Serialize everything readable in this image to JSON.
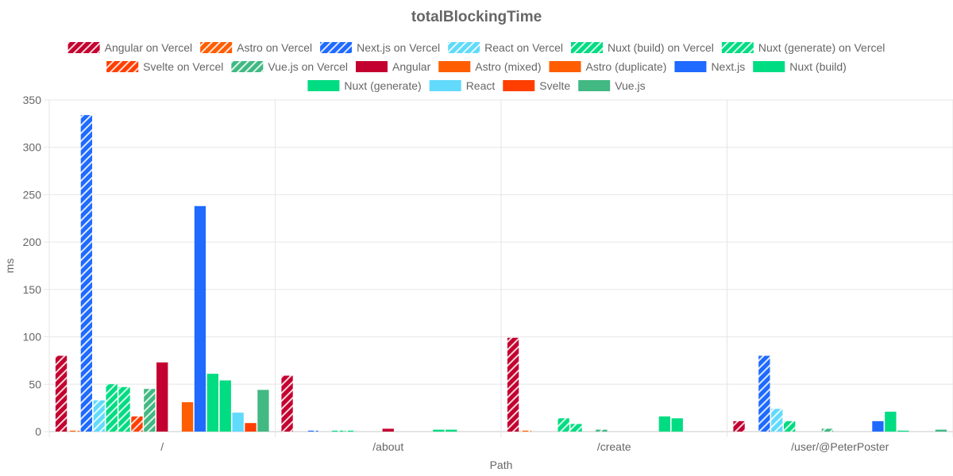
{
  "chart_data": {
    "type": "bar",
    "title": "totalBlockingTime",
    "xlabel": "Path",
    "ylabel": "ms",
    "ylim": [
      0,
      350
    ],
    "yticks": [
      0,
      50,
      100,
      150,
      200,
      250,
      300,
      350
    ],
    "grid": true,
    "legend_position": "top",
    "categories": [
      "/",
      "/about",
      "/create",
      "/user/@PeterPoster"
    ],
    "series": [
      {
        "name": "Angular on Vercel",
        "color": "#c3002f",
        "pattern": "hatched",
        "values": [
          80,
          59,
          99,
          11
        ]
      },
      {
        "name": "Astro on Vercel",
        "color": "#ff5d01",
        "pattern": "hatched",
        "values": [
          1,
          0,
          1,
          0
        ]
      },
      {
        "name": "Next.js on Vercel",
        "color": "#1f6aff",
        "pattern": "hatched",
        "values": [
          334,
          1,
          0,
          80
        ]
      },
      {
        "name": "React on Vercel",
        "color": "#61dafb",
        "pattern": "hatched",
        "values": [
          33,
          0,
          0,
          24
        ]
      },
      {
        "name": "Nuxt (build) on Vercel",
        "color": "#00dc82",
        "pattern": "hatched",
        "values": [
          50,
          1,
          14,
          11
        ]
      },
      {
        "name": "Nuxt (generate) on Vercel",
        "color": "#00dc82",
        "pattern": "hatched",
        "values": [
          47,
          1,
          8,
          0
        ]
      },
      {
        "name": "Svelte on Vercel",
        "color": "#ff3e00",
        "pattern": "hatched",
        "values": [
          16,
          0,
          0,
          0
        ]
      },
      {
        "name": "Vue.js on Vercel",
        "color": "#42b883",
        "pattern": "hatched",
        "values": [
          45,
          0,
          2,
          3
        ]
      },
      {
        "name": "Angular",
        "color": "#c3002f",
        "pattern": "solid",
        "values": [
          73,
          3,
          0,
          0
        ]
      },
      {
        "name": "Astro (mixed)",
        "color": "#ff5d01",
        "pattern": "solid",
        "values": [
          0,
          0,
          0,
          0
        ]
      },
      {
        "name": "Astro (duplicate)",
        "color": "#ff5d01",
        "pattern": "solid",
        "values": [
          31,
          0,
          0,
          0
        ]
      },
      {
        "name": "Next.js",
        "color": "#1f6aff",
        "pattern": "solid",
        "values": [
          238,
          0,
          0,
          11
        ]
      },
      {
        "name": "Nuxt (build)",
        "color": "#00dc82",
        "pattern": "solid",
        "values": [
          61,
          2,
          16,
          21
        ]
      },
      {
        "name": "Nuxt (generate)",
        "color": "#00dc82",
        "pattern": "solid",
        "values": [
          54,
          2,
          14,
          1
        ]
      },
      {
        "name": "React",
        "color": "#61dafb",
        "pattern": "solid",
        "values": [
          20,
          0,
          0,
          0
        ]
      },
      {
        "name": "Svelte",
        "color": "#ff3e00",
        "pattern": "solid",
        "values": [
          9,
          0,
          0,
          0
        ]
      },
      {
        "name": "Vue.js",
        "color": "#42b883",
        "pattern": "solid",
        "values": [
          44,
          0,
          0,
          2
        ]
      }
    ]
  }
}
